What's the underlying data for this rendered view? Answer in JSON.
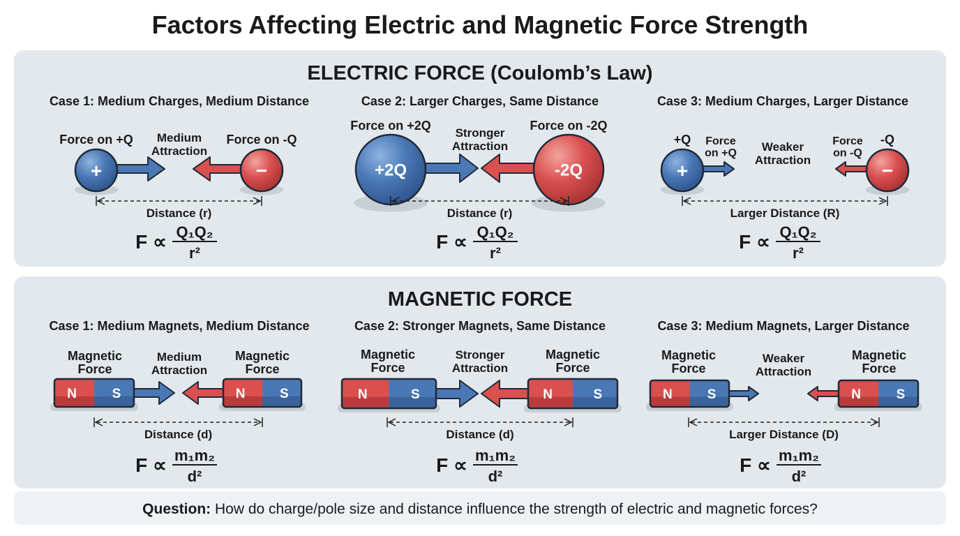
{
  "title": "Factors Affecting Electric and Magnetic Force Strength",
  "colors": {
    "blue": "#4a78b5",
    "red": "#d9504f",
    "panel": "#e2e8ec",
    "outline": "#1f2a3a"
  },
  "electric": {
    "heading": "ELECTRIC FORCE (Coulomb’s Law)",
    "cases": [
      {
        "title": "Case 1: Medium Charges, Medium Distance",
        "left_label": [
          "Force on +Q"
        ],
        "mid_label": [
          "Medium",
          "Attraction"
        ],
        "right_label": [
          "Force on -Q"
        ],
        "left_symbol": "+",
        "right_symbol": "−",
        "distance_label": "Distance (r)",
        "formula": {
          "lhs": "F ∝",
          "numerator": "Q₁Q₂",
          "denominator": "r²"
        }
      },
      {
        "title": "Case 2: Larger Charges, Same Distance",
        "left_label": [
          "Force on +2Q"
        ],
        "mid_label": [
          "Stronger",
          "Attraction"
        ],
        "right_label": [
          "Force on -2Q"
        ],
        "left_symbol": "+2Q",
        "right_symbol": "-2Q",
        "distance_label": "Distance (r)",
        "formula": {
          "lhs": "F ∝",
          "numerator": "Q₁Q₂",
          "denominator": "r²"
        }
      },
      {
        "title": "Case 3: Medium Charges, Larger Distance",
        "left_label": [
          "+Q"
        ],
        "left_force": [
          "Force",
          "on +Q"
        ],
        "mid_label": [
          "Weaker",
          "Attraction"
        ],
        "right_force": [
          "Force",
          "on -Q"
        ],
        "right_label": [
          "-Q"
        ],
        "left_symbol": "+",
        "right_symbol": "−",
        "distance_label": "Larger Distance (R)",
        "formula": {
          "lhs": "F ∝",
          "numerator": "Q₁Q₂",
          "denominator": "r²"
        }
      }
    ]
  },
  "magnetic": {
    "heading": "MAGNETIC FORCE",
    "cases": [
      {
        "title": "Case 1: Medium Magnets, Medium Distance",
        "left_label": [
          "Magnetic",
          "Force"
        ],
        "mid_label": [
          "Medium",
          "Attraction"
        ],
        "right_label": [
          "Magnetic",
          "Force"
        ],
        "poles": [
          "N",
          "S"
        ],
        "distance_label": "Distance (d)",
        "formula": {
          "lhs": "F ∝",
          "numerator": "m₁m₂",
          "denominator": "d²"
        }
      },
      {
        "title": "Case 2: Stronger Magnets, Same Distance",
        "left_label": [
          "Magnetic",
          "Force"
        ],
        "mid_label": [
          "Stronger",
          "Attraction"
        ],
        "right_label": [
          "Magnetic",
          "Force"
        ],
        "poles": [
          "N",
          "S"
        ],
        "distance_label": "Distance (d)",
        "formula": {
          "lhs": "F ∝",
          "numerator": "m₁m₂",
          "denominator": "d²"
        }
      },
      {
        "title": "Case 3: Medium Magnets, Larger Distance",
        "left_label": [
          "Magnetic",
          "Force"
        ],
        "mid_label": [
          "Weaker",
          "Attraction"
        ],
        "right_label": [
          "Magnetic",
          "Force"
        ],
        "poles": [
          "N",
          "S"
        ],
        "distance_label": "Larger Distance (D)",
        "formula": {
          "lhs": "F ∝",
          "numerator": "m₁m₂",
          "denominator": "d²"
        }
      }
    ]
  },
  "question": {
    "label": "Question:",
    "text": " How do charge/pole size and distance influence the strength of electric and magnetic forces?"
  }
}
